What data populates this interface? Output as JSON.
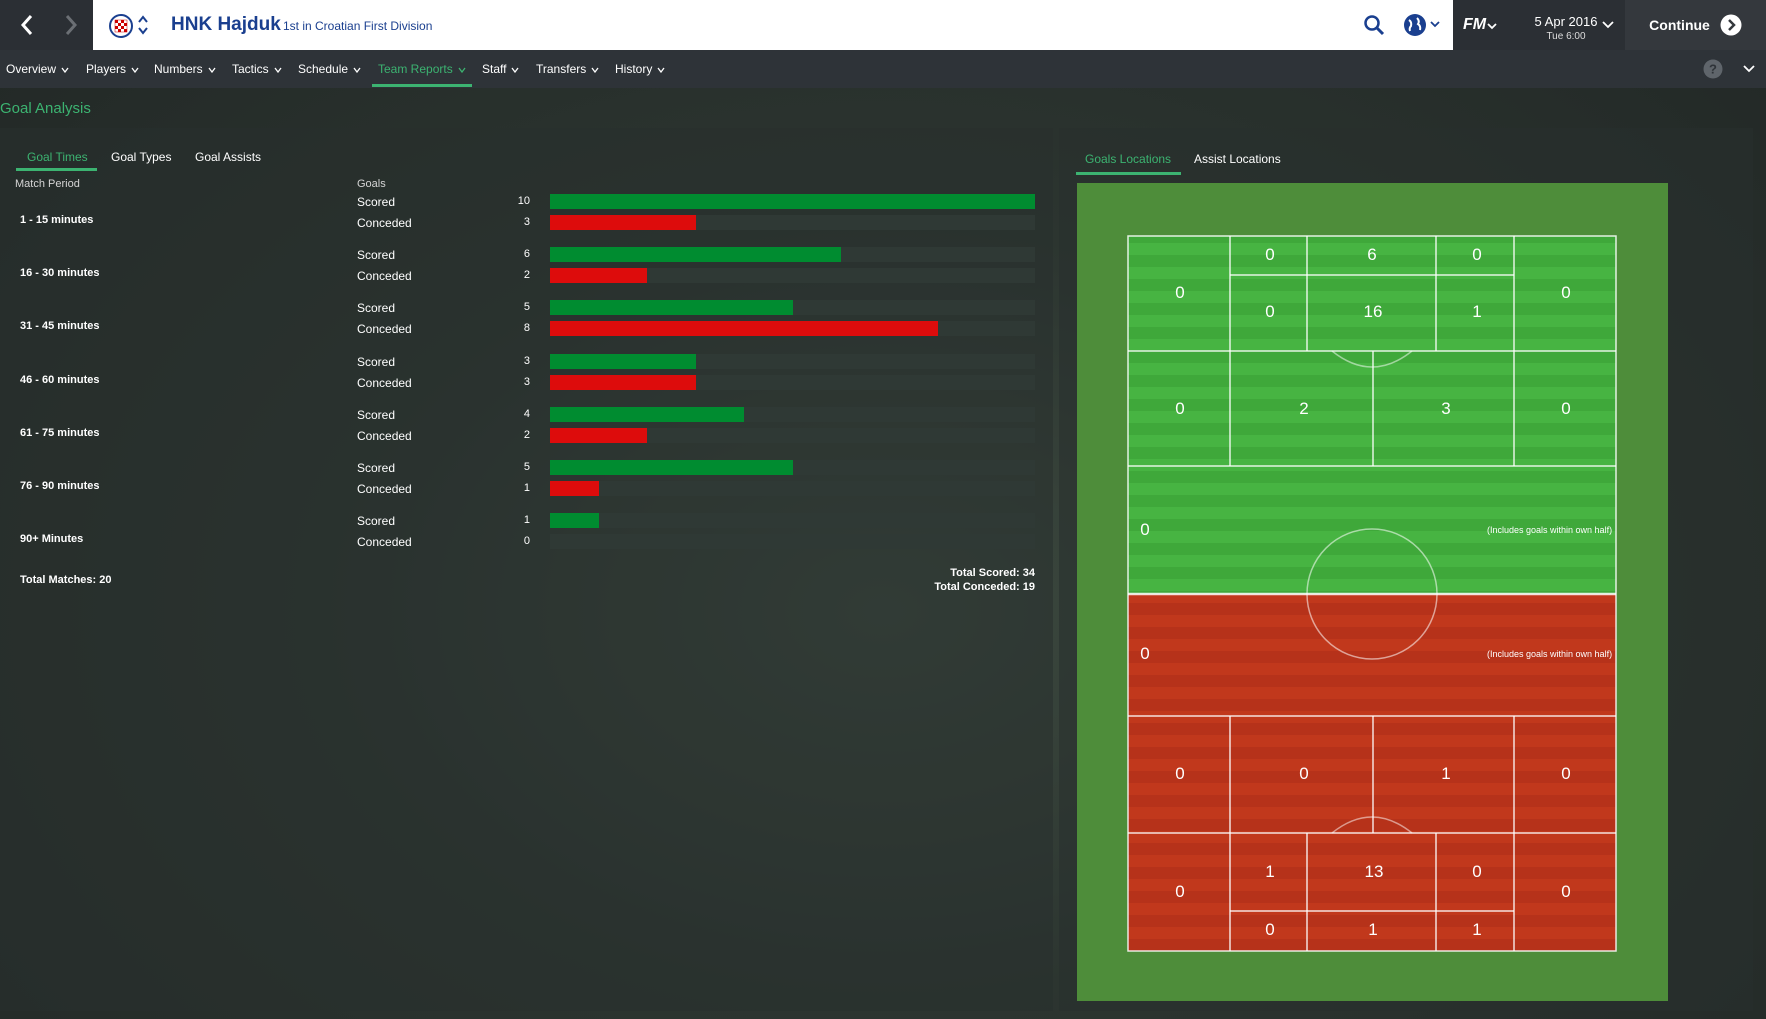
{
  "header": {
    "club_name": "HNK Hajduk",
    "league_position": "1st in Croatian First Division",
    "fm_logo": "FM",
    "date": "5 Apr 2016",
    "time": "Tue 6:00",
    "continue_label": "Continue"
  },
  "menu": {
    "items": [
      "Overview",
      "Players",
      "Numbers",
      "Tactics",
      "Schedule",
      "Team Reports",
      "Staff",
      "Transfers",
      "History"
    ],
    "active": "Team Reports"
  },
  "page": {
    "title": "Goal Analysis"
  },
  "subtabs": {
    "goal_times": "Goal Times",
    "goal_types": "Goal Types",
    "goal_assists": "Goal Assists"
  },
  "table": {
    "col_period": "Match Period",
    "col_goals": "Goals",
    "scored_label": "Scored",
    "conceded_label": "Conceded",
    "max_value": 10,
    "rows": [
      {
        "period": "1 - 15 minutes",
        "scored": 10,
        "conceded": 3
      },
      {
        "period": "16 - 30 minutes",
        "scored": 6,
        "conceded": 2
      },
      {
        "period": "31 - 45 minutes",
        "scored": 5,
        "conceded": 8
      },
      {
        "period": "46 - 60 minutes",
        "scored": 3,
        "conceded": 3
      },
      {
        "period": "61 - 75 minutes",
        "scored": 4,
        "conceded": 2
      },
      {
        "period": "76 - 90 minutes",
        "scored": 5,
        "conceded": 1
      },
      {
        "period": "90+ Minutes",
        "scored": 1,
        "conceded": 0
      }
    ],
    "total_matches": "Total Matches: 20",
    "total_scored": "Total Scored: 34",
    "total_conceded": "Total Conceded: 19"
  },
  "locations": {
    "tab_goals": "Goals Locations",
    "tab_assists": "Assist Locations",
    "half_note": "(Includes goals within own half)",
    "attack": {
      "six_yard": [
        "0",
        "6",
        "0"
      ],
      "box_corners": [
        "0",
        "0"
      ],
      "penalty_spot": [
        "0",
        "16",
        "1"
      ],
      "final_third": [
        "0",
        "2",
        "3",
        "0"
      ],
      "opp_half": "0"
    },
    "defence": {
      "own_half": "0",
      "def_third": [
        "0",
        "0",
        "1",
        "0"
      ],
      "box_corners": [
        "0",
        "0"
      ],
      "penalty_spot": [
        "1",
        "13",
        "0"
      ],
      "six_yard": [
        "0",
        "1",
        "1"
      ]
    }
  },
  "colors": {
    "accent": "#3cb371",
    "scored": "#008c30",
    "conceded": "#dd0c0c",
    "pitch_green": "#3fa83a",
    "pitch_red": "#c1381c"
  }
}
